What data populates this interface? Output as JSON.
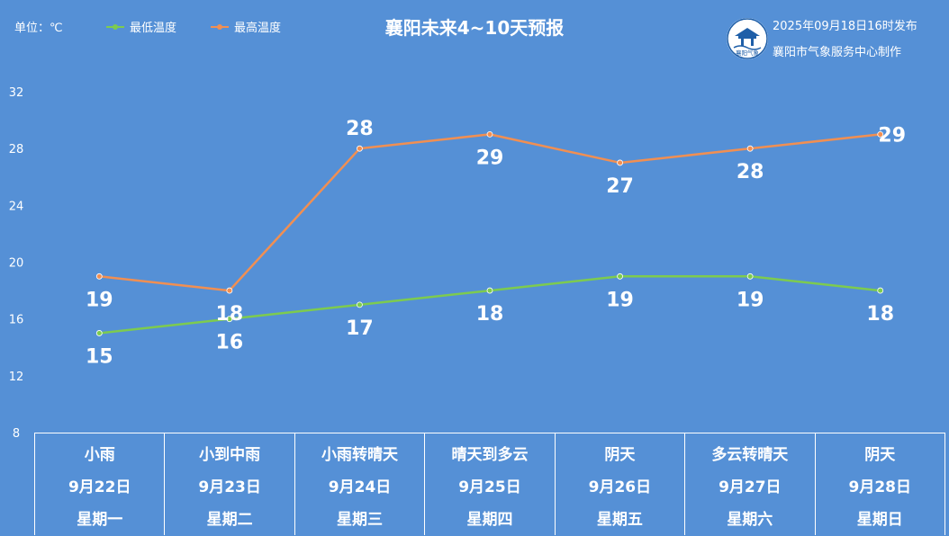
{
  "header": {
    "unit": "单位：℃",
    "title": "襄阳未来4~10天预报",
    "publish_time": "2025年09月18日16时发布",
    "producer": "襄阳市气象服务中心制作",
    "logo_text": "襄阳气象"
  },
  "colors": {
    "background": "#5590d6",
    "low_line": "#7dcb4f",
    "high_line": "#f18f52",
    "text": "#ffffff"
  },
  "chart_data": {
    "type": "line",
    "title": "襄阳未来4~10天预报",
    "ylabel": "单位：℃",
    "ylim": [
      8,
      32
    ],
    "yticks": [
      "8",
      "12",
      "16",
      "20",
      "24",
      "28",
      "32"
    ],
    "grid": false,
    "legend": "top-left",
    "categories": [
      "9月22日",
      "9月23日",
      "9月24日",
      "9月25日",
      "9月26日",
      "9月27日",
      "9月28日"
    ],
    "series": [
      {
        "name": "最低温度",
        "values": [
          15,
          16,
          17,
          18,
          19,
          19,
          18
        ]
      },
      {
        "name": "最高温度",
        "values": [
          19,
          18,
          28,
          29,
          27,
          28,
          29
        ]
      }
    ]
  },
  "table": {
    "days": [
      {
        "weather": "小雨",
        "date": "9月22日",
        "weekday": "星期一"
      },
      {
        "weather": "小到中雨",
        "date": "9月23日",
        "weekday": "星期二"
      },
      {
        "weather": "小雨转晴天",
        "date": "9月24日",
        "weekday": "星期三"
      },
      {
        "weather": "晴天到多云",
        "date": "9月25日",
        "weekday": "星期四"
      },
      {
        "weather": "阴天",
        "date": "9月26日",
        "weekday": "星期五"
      },
      {
        "weather": "多云转晴天",
        "date": "9月27日",
        "weekday": "星期六"
      },
      {
        "weather": "阴天",
        "date": "9月28日",
        "weekday": "星期日"
      }
    ]
  }
}
